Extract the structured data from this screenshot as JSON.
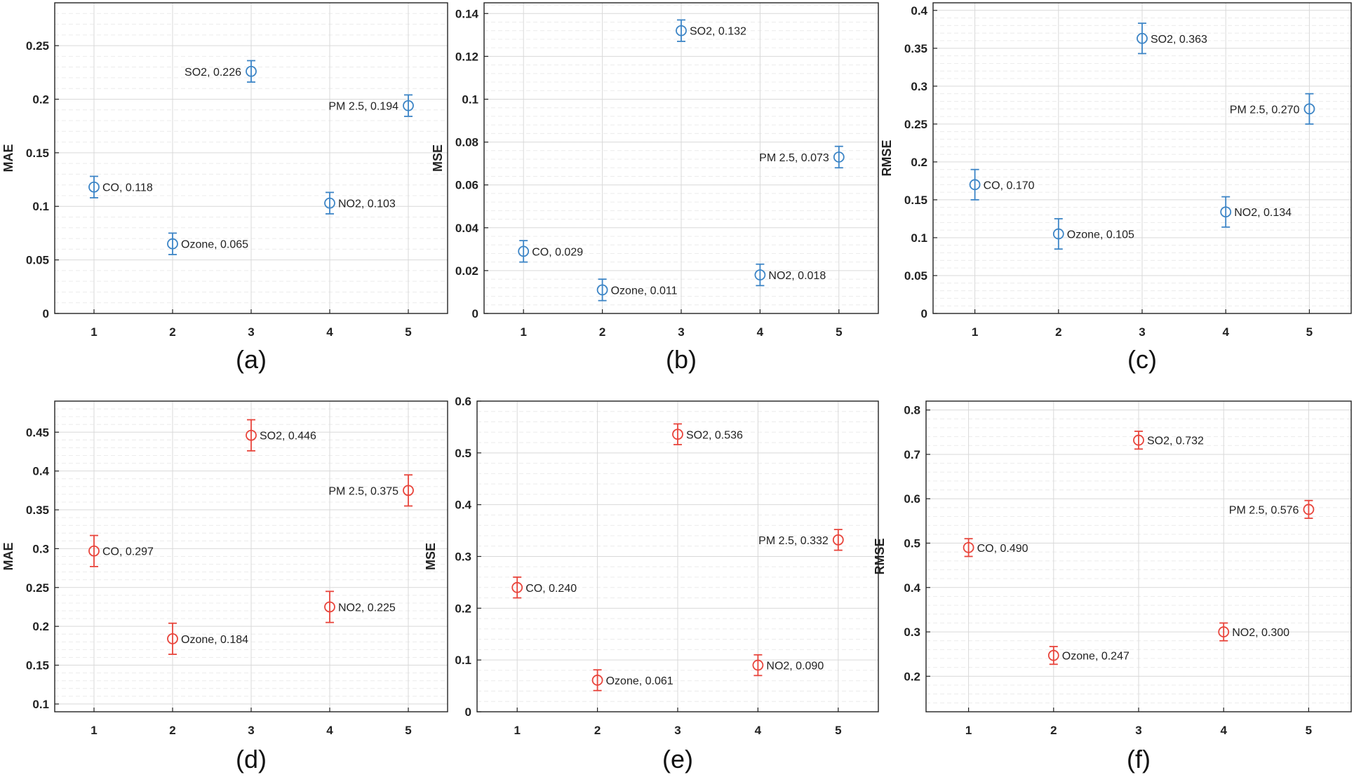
{
  "colors": {
    "top_series": "#3d85c6",
    "bottom_series": "#e8453c"
  },
  "chart_data": [
    {
      "type": "scatter",
      "caption": "(a)",
      "ylabel": "MAE",
      "x": [
        1,
        2,
        3,
        4,
        5
      ],
      "xticks": [
        "1",
        "2",
        "3",
        "4",
        "5"
      ],
      "xlim": [
        0.5,
        5.5
      ],
      "ylim": [
        0,
        0.29
      ],
      "yticks": [
        "0",
        "0.05",
        "0.1",
        "0.15",
        "0.2",
        "0.25"
      ],
      "grid": true,
      "color_key": "top_series",
      "points": [
        {
          "x": 1,
          "y": 0.118,
          "err": 0.01,
          "label": "CO, 0.118",
          "label_side": "right"
        },
        {
          "x": 2,
          "y": 0.065,
          "err": 0.01,
          "label": "Ozone, 0.065",
          "label_side": "right"
        },
        {
          "x": 3,
          "y": 0.226,
          "err": 0.01,
          "label": "SO2, 0.226",
          "label_side": "left"
        },
        {
          "x": 4,
          "y": 0.103,
          "err": 0.01,
          "label": "NO2, 0.103",
          "label_side": "right"
        },
        {
          "x": 5,
          "y": 0.194,
          "err": 0.01,
          "label": "PM 2.5, 0.194",
          "label_side": "left"
        }
      ]
    },
    {
      "type": "scatter",
      "caption": "(b)",
      "ylabel": "MSE",
      "x": [
        1,
        2,
        3,
        4,
        5
      ],
      "xticks": [
        "1",
        "2",
        "3",
        "4",
        "5"
      ],
      "xlim": [
        0.5,
        5.5
      ],
      "ylim": [
        0,
        0.145
      ],
      "yticks": [
        "0",
        "0.02",
        "0.04",
        "0.06",
        "0.08",
        "0.1",
        "0.12",
        "0.14"
      ],
      "grid": true,
      "color_key": "top_series",
      "points": [
        {
          "x": 1,
          "y": 0.029,
          "err": 0.005,
          "label": "CO, 0.029",
          "label_side": "right"
        },
        {
          "x": 2,
          "y": 0.011,
          "err": 0.005,
          "label": "Ozone, 0.011",
          "label_side": "right"
        },
        {
          "x": 3,
          "y": 0.132,
          "err": 0.005,
          "label": "SO2, 0.132",
          "label_side": "right"
        },
        {
          "x": 4,
          "y": 0.018,
          "err": 0.005,
          "label": "NO2, 0.018",
          "label_side": "right"
        },
        {
          "x": 5,
          "y": 0.073,
          "err": 0.005,
          "label": "PM 2.5, 0.073",
          "label_side": "left"
        }
      ]
    },
    {
      "type": "scatter",
      "caption": "(c)",
      "ylabel": "RMSE",
      "x": [
        1,
        2,
        3,
        4,
        5
      ],
      "xticks": [
        "1",
        "2",
        "3",
        "4",
        "5"
      ],
      "xlim": [
        0.5,
        5.5
      ],
      "ylim": [
        0,
        0.41
      ],
      "yticks": [
        "0",
        "0.05",
        "0.1",
        "0.15",
        "0.2",
        "0.25",
        "0.3",
        "0.35",
        "0.4"
      ],
      "grid": true,
      "color_key": "top_series",
      "points": [
        {
          "x": 1,
          "y": 0.17,
          "err": 0.02,
          "label": "CO, 0.170",
          "label_side": "right"
        },
        {
          "x": 2,
          "y": 0.105,
          "err": 0.02,
          "label": "Ozone, 0.105",
          "label_side": "right"
        },
        {
          "x": 3,
          "y": 0.363,
          "err": 0.02,
          "label": "SO2, 0.363",
          "label_side": "right"
        },
        {
          "x": 4,
          "y": 0.134,
          "err": 0.02,
          "label": "NO2, 0.134",
          "label_side": "right"
        },
        {
          "x": 5,
          "y": 0.27,
          "err": 0.02,
          "label": "PM 2.5, 0.270",
          "label_side": "left"
        }
      ]
    },
    {
      "type": "scatter",
      "caption": "(d)",
      "ylabel": "MAE",
      "x": [
        1,
        2,
        3,
        4,
        5
      ],
      "xticks": [
        "1",
        "2",
        "3",
        "4",
        "5"
      ],
      "xlim": [
        0.5,
        5.5
      ],
      "ylim": [
        0.09,
        0.49
      ],
      "yticks": [
        "0.1",
        "0.15",
        "0.2",
        "0.25",
        "0.3",
        "0.35",
        "0.4",
        "0.45"
      ],
      "grid": true,
      "color_key": "bottom_series",
      "points": [
        {
          "x": 1,
          "y": 0.297,
          "err": 0.02,
          "label": "CO, 0.297",
          "label_side": "right"
        },
        {
          "x": 2,
          "y": 0.184,
          "err": 0.02,
          "label": "Ozone, 0.184",
          "label_side": "right"
        },
        {
          "x": 3,
          "y": 0.446,
          "err": 0.02,
          "label": "SO2, 0.446",
          "label_side": "right"
        },
        {
          "x": 4,
          "y": 0.225,
          "err": 0.02,
          "label": "NO2, 0.225",
          "label_side": "right"
        },
        {
          "x": 5,
          "y": 0.375,
          "err": 0.02,
          "label": "PM 2.5, 0.375",
          "label_side": "left"
        }
      ]
    },
    {
      "type": "scatter",
      "caption": "(e)",
      "ylabel": "MSE",
      "x": [
        1,
        2,
        3,
        4,
        5
      ],
      "xticks": [
        "1",
        "2",
        "3",
        "4",
        "5"
      ],
      "xlim": [
        0.5,
        5.5
      ],
      "ylim": [
        0,
        0.6
      ],
      "yticks": [
        "0",
        "0.1",
        "0.2",
        "0.3",
        "0.4",
        "0.5",
        "0.6"
      ],
      "grid": true,
      "color_key": "bottom_series",
      "points": [
        {
          "x": 1,
          "y": 0.24,
          "err": 0.02,
          "label": "CO, 0.240",
          "label_side": "right"
        },
        {
          "x": 2,
          "y": 0.061,
          "err": 0.02,
          "label": "Ozone, 0.061",
          "label_side": "right"
        },
        {
          "x": 3,
          "y": 0.536,
          "err": 0.02,
          "label": "SO2, 0.536",
          "label_side": "right"
        },
        {
          "x": 4,
          "y": 0.09,
          "err": 0.02,
          "label": "NO2, 0.090",
          "label_side": "right"
        },
        {
          "x": 5,
          "y": 0.332,
          "err": 0.02,
          "label": "PM 2.5, 0.332",
          "label_side": "left"
        }
      ]
    },
    {
      "type": "scatter",
      "caption": "(f)",
      "ylabel": "RMSE",
      "x": [
        1,
        2,
        3,
        4,
        5
      ],
      "xticks": [
        "1",
        "2",
        "3",
        "4",
        "5"
      ],
      "xlim": [
        0.5,
        5.5
      ],
      "ylim": [
        0.12,
        0.82
      ],
      "yticks": [
        "0.2",
        "0.3",
        "0.4",
        "0.5",
        "0.6",
        "0.7",
        "0.8"
      ],
      "grid": true,
      "color_key": "bottom_series",
      "points": [
        {
          "x": 1,
          "y": 0.49,
          "err": 0.02,
          "label": "CO, 0.490",
          "label_side": "right"
        },
        {
          "x": 2,
          "y": 0.247,
          "err": 0.02,
          "label": "Ozone, 0.247",
          "label_side": "right"
        },
        {
          "x": 3,
          "y": 0.732,
          "err": 0.02,
          "label": "SO2, 0.732",
          "label_side": "right"
        },
        {
          "x": 4,
          "y": 0.3,
          "err": 0.02,
          "label": "NO2, 0.300",
          "label_side": "right"
        },
        {
          "x": 5,
          "y": 0.576,
          "err": 0.02,
          "label": "PM 2.5, 0.576",
          "label_side": "left"
        }
      ]
    }
  ]
}
